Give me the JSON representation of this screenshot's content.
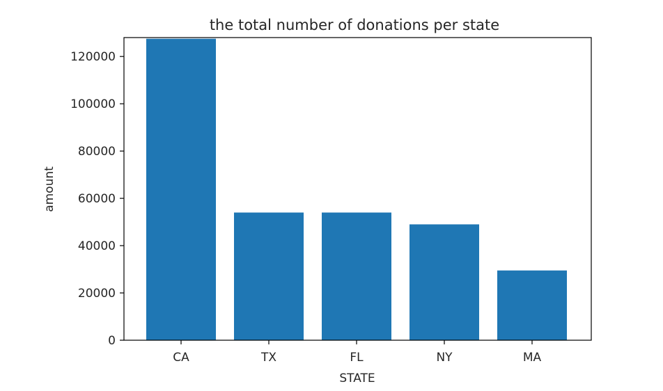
{
  "chart_data": {
    "type": "bar",
    "title": "the total number of donations per state",
    "xlabel": "STATE",
    "ylabel": "amount",
    "categories": [
      "CA",
      "TX",
      "FL",
      "NY",
      "MA"
    ],
    "values": [
      127500,
      54000,
      54000,
      49000,
      29500
    ],
    "ylim": [
      0,
      128000
    ],
    "yticks": [
      0,
      20000,
      40000,
      60000,
      80000,
      100000,
      120000
    ],
    "ytick_labels": [
      "0",
      "20000",
      "40000",
      "60000",
      "80000",
      "100000",
      "120000"
    ],
    "bar_color": "#1f77b4",
    "grid": false,
    "legend": "none"
  }
}
